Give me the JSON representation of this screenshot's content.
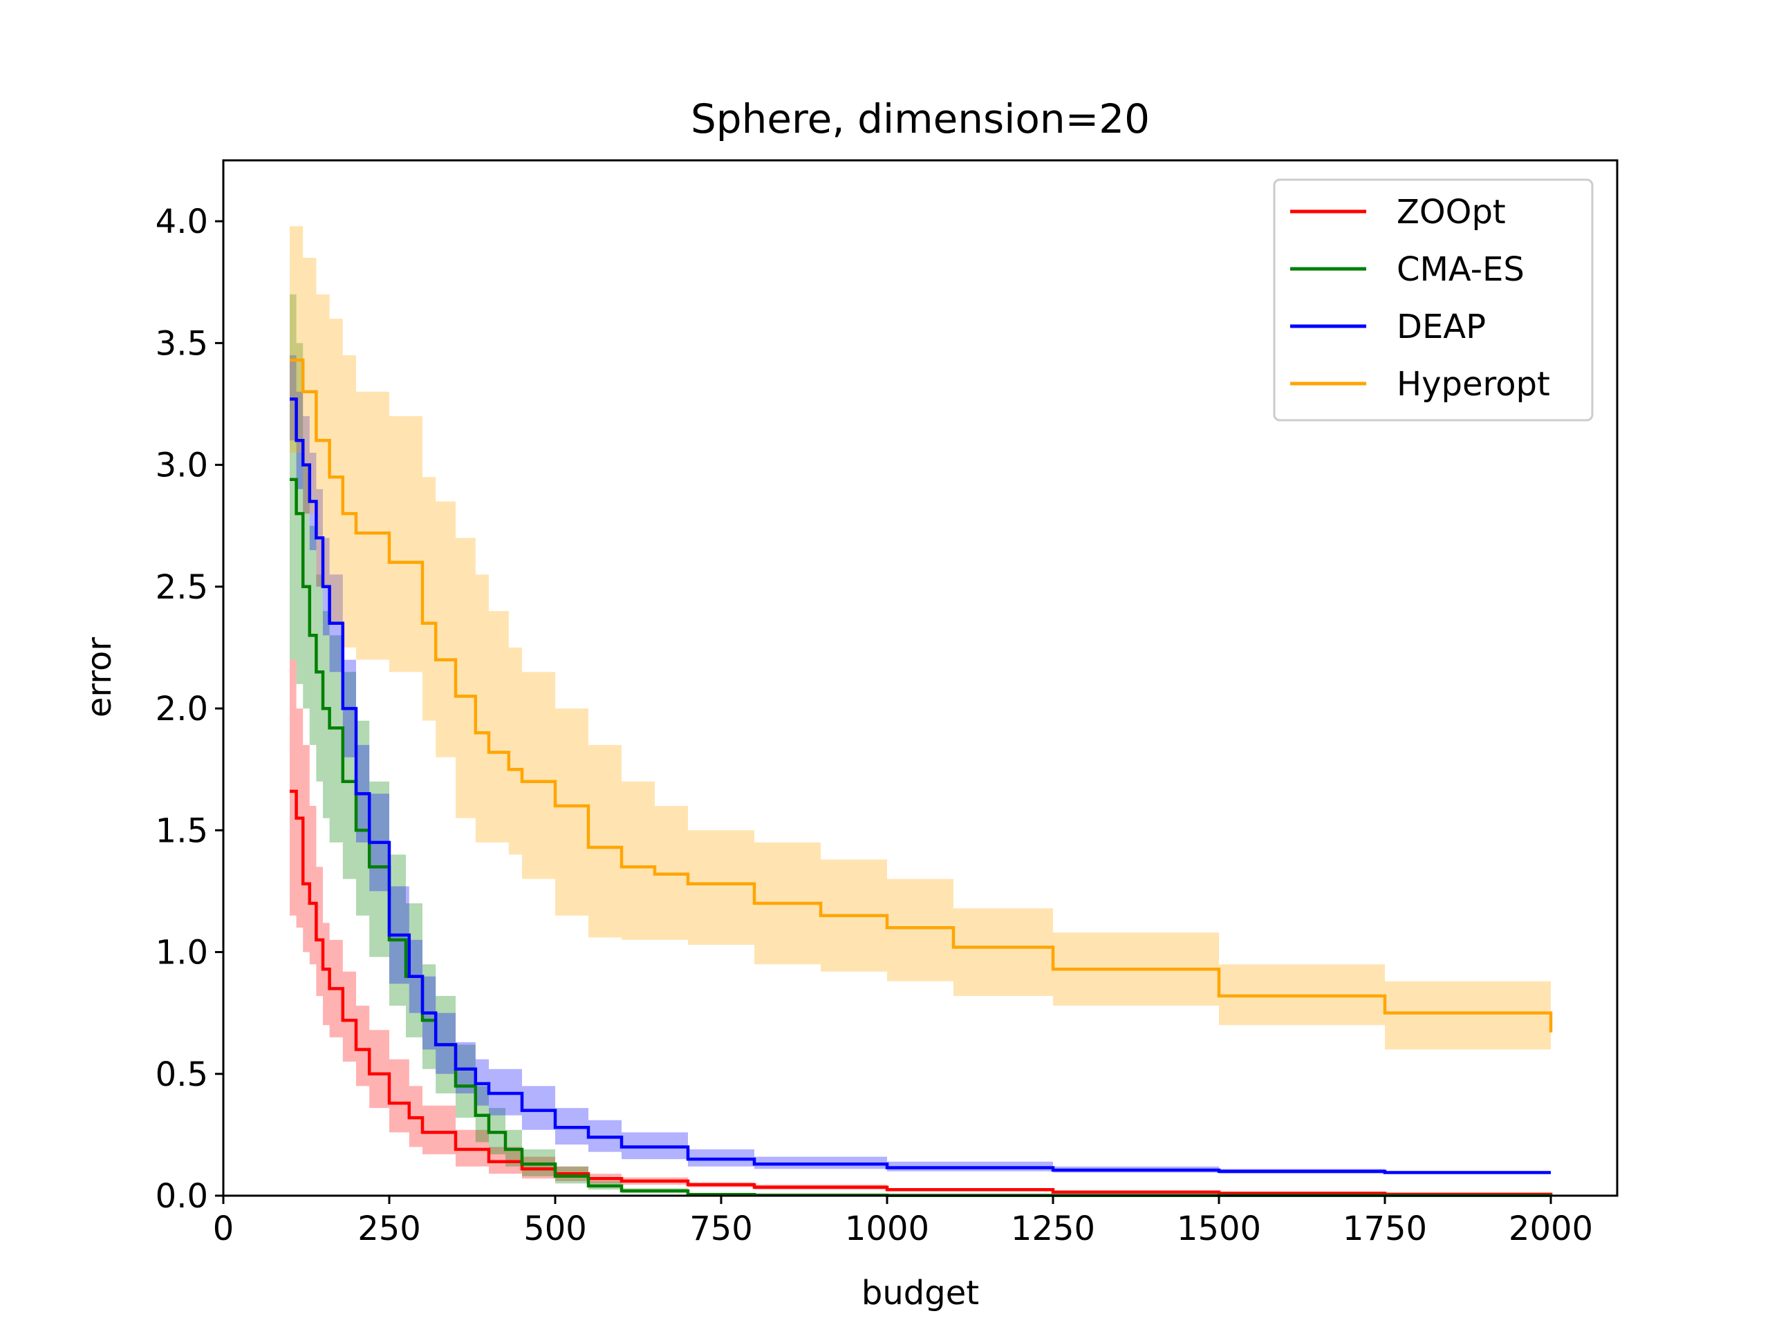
{
  "chart_data": {
    "type": "line",
    "title": "Sphere, dimension=20",
    "xlabel": "budget",
    "ylabel": "error",
    "xlim": [
      0,
      2100
    ],
    "ylim": [
      0,
      4.25
    ],
    "xticks": [
      0,
      250,
      500,
      750,
      1000,
      1250,
      1500,
      1750,
      2000
    ],
    "xtick_labels": [
      "0",
      "250",
      "500",
      "750",
      "1000",
      "1250",
      "1500",
      "1750",
      "2000"
    ],
    "yticks": [
      0,
      0.5,
      1.0,
      1.5,
      2.0,
      2.5,
      3.0,
      3.5,
      4.0
    ],
    "ytick_labels": [
      "0.0",
      "0.5",
      "1.0",
      "1.5",
      "2.0",
      "2.5",
      "3.0",
      "3.5",
      "4.0"
    ],
    "grid": false,
    "legend_position": "top-right",
    "series": [
      {
        "name": "ZOOpt",
        "color": "#ff0000",
        "x": [
          100,
          110,
          120,
          130,
          140,
          150,
          160,
          180,
          200,
          220,
          250,
          280,
          300,
          350,
          400,
          450,
          500,
          550,
          600,
          700,
          800,
          1000,
          1250,
          1500,
          1750,
          2000
        ],
        "y": [
          1.66,
          1.55,
          1.28,
          1.2,
          1.05,
          0.93,
          0.85,
          0.72,
          0.6,
          0.5,
          0.38,
          0.32,
          0.26,
          0.19,
          0.14,
          0.11,
          0.09,
          0.07,
          0.06,
          0.045,
          0.035,
          0.025,
          0.015,
          0.01,
          0.006,
          0.004
        ],
        "upper": [
          2.2,
          2.0,
          1.85,
          1.6,
          1.35,
          1.12,
          1.05,
          0.92,
          0.78,
          0.68,
          0.56,
          0.45,
          0.37,
          0.27,
          0.2,
          0.16,
          0.12,
          0.09,
          0.075,
          0.055,
          0.045,
          0.03,
          0.02,
          0.013,
          0.008,
          0.006
        ],
        "lower": [
          1.15,
          1.1,
          1.0,
          0.95,
          0.82,
          0.7,
          0.65,
          0.55,
          0.45,
          0.36,
          0.26,
          0.2,
          0.17,
          0.12,
          0.09,
          0.07,
          0.06,
          0.05,
          0.045,
          0.035,
          0.025,
          0.018,
          0.01,
          0.007,
          0.004,
          0.002
        ]
      },
      {
        "name": "CMA-ES",
        "color": "#008000",
        "x": [
          100,
          110,
          120,
          130,
          140,
          150,
          160,
          180,
          200,
          220,
          250,
          275,
          300,
          320,
          350,
          380,
          400,
          425,
          450,
          500,
          550,
          600,
          700,
          800,
          1000,
          2000
        ],
        "y": [
          2.94,
          2.8,
          2.5,
          2.3,
          2.15,
          2.0,
          1.92,
          1.7,
          1.5,
          1.35,
          1.05,
          0.9,
          0.72,
          0.62,
          0.45,
          0.33,
          0.26,
          0.19,
          0.13,
          0.08,
          0.04,
          0.02,
          0.005,
          0.002,
          0.001,
          0.0005
        ],
        "upper": [
          3.7,
          3.5,
          3.0,
          2.75,
          2.55,
          2.4,
          2.3,
          2.15,
          1.95,
          1.7,
          1.4,
          1.2,
          0.95,
          0.82,
          0.62,
          0.45,
          0.36,
          0.27,
          0.19,
          0.12,
          0.06,
          0.03,
          0.008,
          0.003,
          0.0015,
          0.0007
        ],
        "lower": [
          2.2,
          2.1,
          2.0,
          1.85,
          1.7,
          1.55,
          1.45,
          1.3,
          1.15,
          0.98,
          0.78,
          0.65,
          0.52,
          0.42,
          0.32,
          0.22,
          0.17,
          0.12,
          0.08,
          0.05,
          0.025,
          0.01,
          0.003,
          0.001,
          0.0005,
          0.0003
        ]
      },
      {
        "name": "DEAP",
        "color": "#0000ff",
        "x": [
          100,
          110,
          120,
          130,
          140,
          150,
          160,
          180,
          200,
          220,
          250,
          280,
          300,
          320,
          350,
          380,
          400,
          450,
          500,
          550,
          600,
          700,
          800,
          1000,
          1250,
          1500,
          1750,
          2000
        ],
        "y": [
          3.27,
          3.1,
          3.0,
          2.85,
          2.7,
          2.5,
          2.35,
          2.0,
          1.65,
          1.45,
          1.07,
          0.9,
          0.75,
          0.62,
          0.52,
          0.46,
          0.42,
          0.35,
          0.28,
          0.24,
          0.2,
          0.15,
          0.13,
          0.115,
          0.105,
          0.1,
          0.095,
          0.095
        ],
        "upper": [
          3.45,
          3.3,
          3.2,
          3.05,
          2.9,
          2.7,
          2.55,
          2.2,
          1.85,
          1.65,
          1.27,
          1.05,
          0.9,
          0.75,
          0.63,
          0.56,
          0.52,
          0.45,
          0.36,
          0.31,
          0.26,
          0.19,
          0.16,
          0.14,
          0.12,
          0.11,
          0.1,
          0.1
        ],
        "lower": [
          3.1,
          2.9,
          2.8,
          2.65,
          2.5,
          2.3,
          2.15,
          1.8,
          1.45,
          1.25,
          0.87,
          0.75,
          0.6,
          0.5,
          0.42,
          0.37,
          0.33,
          0.27,
          0.21,
          0.18,
          0.15,
          0.12,
          0.11,
          0.1,
          0.095,
          0.09,
          0.09,
          0.09
        ]
      },
      {
        "name": "Hyperopt",
        "color": "#ffa500",
        "x": [
          100,
          120,
          140,
          160,
          180,
          200,
          250,
          300,
          320,
          350,
          380,
          400,
          430,
          450,
          500,
          550,
          600,
          650,
          700,
          800,
          900,
          1000,
          1100,
          1250,
          1500,
          1750,
          2000
        ],
        "y": [
          3.43,
          3.3,
          3.1,
          2.95,
          2.8,
          2.72,
          2.6,
          2.35,
          2.2,
          2.05,
          1.9,
          1.82,
          1.75,
          1.7,
          1.6,
          1.43,
          1.35,
          1.32,
          1.28,
          1.2,
          1.15,
          1.1,
          1.02,
          0.93,
          0.82,
          0.75,
          0.67
        ],
        "upper": [
          3.98,
          3.85,
          3.7,
          3.6,
          3.45,
          3.3,
          3.2,
          2.95,
          2.85,
          2.7,
          2.55,
          2.4,
          2.25,
          2.15,
          2.0,
          1.85,
          1.7,
          1.6,
          1.5,
          1.45,
          1.38,
          1.3,
          1.18,
          1.08,
          0.95,
          0.88,
          0.79
        ],
        "lower": [
          3.05,
          2.8,
          2.5,
          2.35,
          2.25,
          2.2,
          2.15,
          1.95,
          1.8,
          1.55,
          1.45,
          1.45,
          1.4,
          1.3,
          1.15,
          1.06,
          1.05,
          1.05,
          1.03,
          0.95,
          0.92,
          0.88,
          0.82,
          0.78,
          0.7,
          0.6,
          0.54
        ]
      }
    ]
  }
}
